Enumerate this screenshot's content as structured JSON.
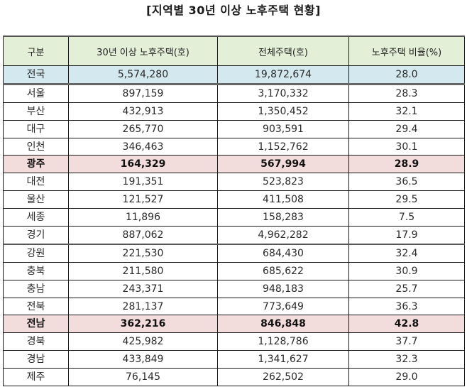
{
  "title": "[지역별 30년 이상 노후주택 현황]",
  "colors": {
    "header_bg": "#e4efd8",
    "national_bg": "#d4e9ef",
    "highlight_bg": "#f3dcdc",
    "border": "#1a1a1a"
  },
  "table": {
    "headers": [
      "구분",
      "30년 이상 노후주택(호)",
      "전체주택(호)",
      "노후주택 비율(%)"
    ],
    "rows": [
      {
        "region": "전국",
        "old_houses": "5,574,280",
        "total_houses": "19,872,674",
        "ratio": "28.0",
        "style": "national"
      },
      {
        "region": "서울",
        "old_houses": "897,159",
        "total_houses": "3,170,332",
        "ratio": "28.3",
        "style": ""
      },
      {
        "region": "부산",
        "old_houses": "432,913",
        "total_houses": "1,350,452",
        "ratio": "32.1",
        "style": ""
      },
      {
        "region": "대구",
        "old_houses": "265,770",
        "total_houses": "903,591",
        "ratio": "29.4",
        "style": ""
      },
      {
        "region": "인천",
        "old_houses": "346,463",
        "total_houses": "1,152,762",
        "ratio": "30.1",
        "style": ""
      },
      {
        "region": "광주",
        "old_houses": "164,329",
        "total_houses": "567,994",
        "ratio": "28.9",
        "style": "highlight"
      },
      {
        "region": "대전",
        "old_houses": "191,351",
        "total_houses": "523,823",
        "ratio": "36.5",
        "style": ""
      },
      {
        "region": "울산",
        "old_houses": "121,527",
        "total_houses": "411,508",
        "ratio": "29.5",
        "style": ""
      },
      {
        "region": "세종",
        "old_houses": "11,896",
        "total_houses": "158,283",
        "ratio": "7.5",
        "style": ""
      },
      {
        "region": "경기",
        "old_houses": "887,062",
        "total_houses": "4,962,282",
        "ratio": "17.9",
        "style": "group-end"
      },
      {
        "region": "강원",
        "old_houses": "221,530",
        "total_houses": "684,430",
        "ratio": "32.4",
        "style": ""
      },
      {
        "region": "충북",
        "old_houses": "211,580",
        "total_houses": "685,622",
        "ratio": "30.9",
        "style": ""
      },
      {
        "region": "충남",
        "old_houses": "243,371",
        "total_houses": "948,183",
        "ratio": "25.7",
        "style": ""
      },
      {
        "region": "전북",
        "old_houses": "281,137",
        "total_houses": "773,649",
        "ratio": "36.3",
        "style": ""
      },
      {
        "region": "전남",
        "old_houses": "362,216",
        "total_houses": "846,848",
        "ratio": "42.8",
        "style": "highlight"
      },
      {
        "region": "경북",
        "old_houses": "425,982",
        "total_houses": "1,128,786",
        "ratio": "37.7",
        "style": ""
      },
      {
        "region": "경남",
        "old_houses": "433,849",
        "total_houses": "1,341,627",
        "ratio": "32.3",
        "style": ""
      },
      {
        "region": "제주",
        "old_houses": "76,145",
        "total_houses": "262,502",
        "ratio": "29.0",
        "style": ""
      }
    ]
  }
}
